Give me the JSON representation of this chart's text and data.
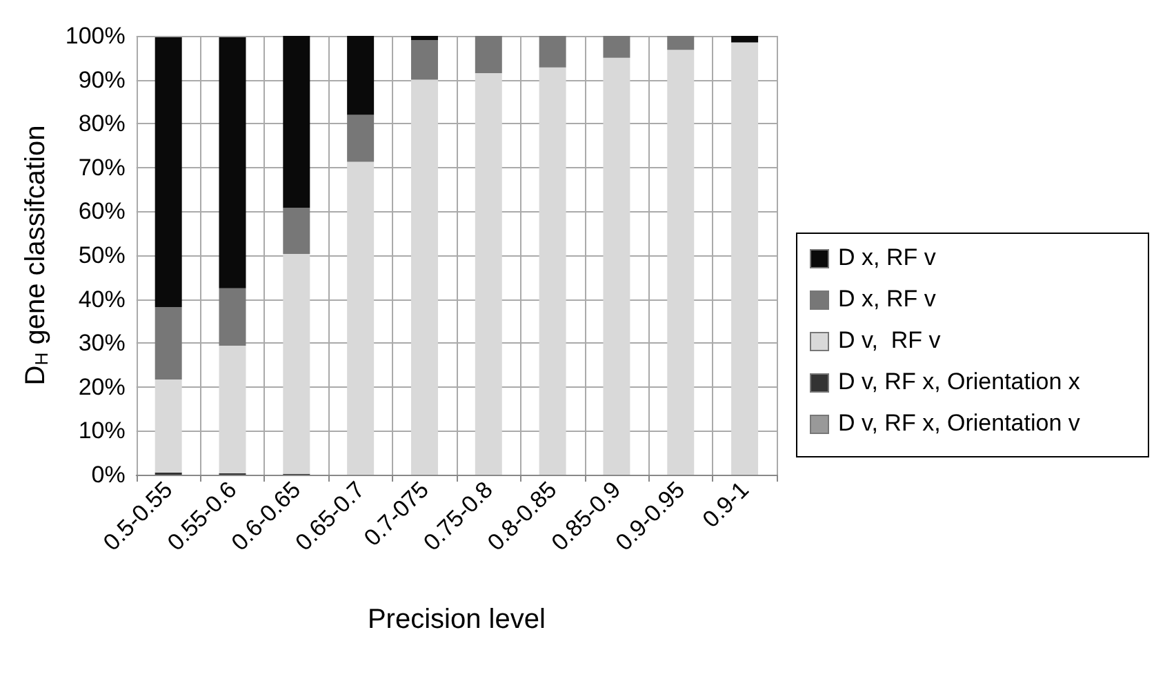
{
  "chart_data": {
    "type": "bar",
    "stacked": true,
    "xlabel": "Precision level",
    "ylabel": "D$_{H}$ gene classifcation",
    "categories": [
      "0.5-0.55",
      "0.55-0.6",
      "0.6-0.65",
      "0.65-0.7",
      "0.7-075",
      "0.75-0.8",
      "0.8-0.85",
      "0.85-0.9",
      "0.9-0.95",
      "0.9-1"
    ],
    "series": [
      {
        "name": "D v, RF x, Orientation v",
        "color": "#999999",
        "values": [
          null,
          null,
          0,
          0,
          0,
          0,
          0,
          0,
          0,
          0
        ]
      },
      {
        "name": "D v, RF x, Orientation x",
        "color": "#333333",
        "values": [
          0.5,
          0.3,
          0.2,
          0,
          0,
          0,
          0,
          0,
          0,
          0
        ]
      },
      {
        "name": "D v,  RF v",
        "color": "#d9d9d9",
        "values": [
          21.2,
          29.1,
          50.1,
          71.3,
          90,
          91.5,
          92.8,
          95,
          96.8,
          98.5
        ]
      },
      {
        "name": "D x, RF v",
        "color": "#777777",
        "values": [
          16.5,
          13.1,
          10.5,
          10.7,
          9,
          8.5,
          7.2,
          5,
          3.2,
          0
        ]
      },
      {
        "name": "D x, RF v",
        "color": "#0a0a0a",
        "values": [
          61.5,
          57.2,
          39.2,
          18,
          1,
          0,
          0,
          0,
          0,
          1.5
        ]
      }
    ],
    "ylim": [
      0,
      100
    ],
    "yticks": [
      {
        "value": 0,
        "label": "0%"
      },
      {
        "value": 10,
        "label": "10%"
      },
      {
        "value": 20,
        "label": "20%"
      },
      {
        "value": 30,
        "label": "30%"
      },
      {
        "value": 40,
        "label": "40%"
      },
      {
        "value": 50,
        "label": "50%"
      },
      {
        "value": 60,
        "label": "60%"
      },
      {
        "value": 70,
        "label": "70%"
      },
      {
        "value": 80,
        "label": "80%"
      },
      {
        "value": 90,
        "label": "90%"
      },
      {
        "value": 100,
        "label": "100%"
      }
    ],
    "grid": true,
    "legend": "right"
  }
}
